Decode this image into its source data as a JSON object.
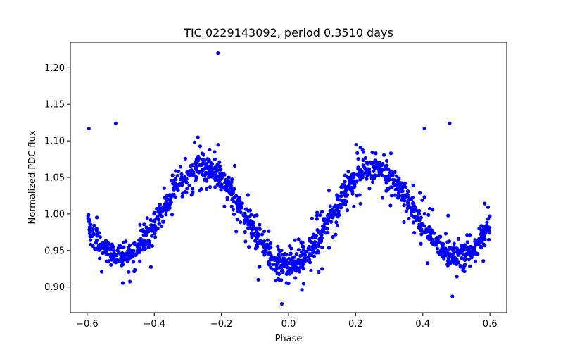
{
  "chart_data": {
    "type": "scatter",
    "title": "TIC 0229143092, period 0.3510 days",
    "xlabel": "Phase",
    "ylabel": "Normalized PDC flux",
    "xlim": [
      -0.65,
      0.65
    ],
    "ylim": [
      0.865,
      1.235
    ],
    "x_ticks": [
      -0.6,
      -0.4,
      -0.2,
      0.0,
      0.2,
      0.4,
      0.6
    ],
    "x_tick_labels": [
      "−0.6",
      "−0.4",
      "−0.2",
      "0.0",
      "0.2",
      "0.4",
      "0.6"
    ],
    "y_ticks": [
      0.9,
      0.95,
      1.0,
      1.05,
      1.1,
      1.15,
      1.2
    ],
    "y_tick_labels": [
      "0.90",
      "0.95",
      "1.00",
      "1.05",
      "1.10",
      "1.15",
      "1.20"
    ],
    "grid": false,
    "legend": "none",
    "marker_color": "#0000ff",
    "model": {
      "description_of_trend": "W UMa-type eclipsing binary light curve: minima near phase 0 (~0.93) and ±0.5 (~0.94), maxima near ±0.27 (~1.06–1.07)",
      "primary_min_flux": 0.928,
      "secondary_min_flux": 0.942,
      "max_flux": 1.062,
      "phase_range": [
        -0.6,
        0.6
      ]
    },
    "series": [
      {
        "values_sample": [
          [
            -0.6,
            1.0
          ],
          [
            -0.56,
            0.97
          ],
          [
            -0.52,
            0.955
          ],
          [
            -0.5,
            0.943
          ],
          [
            -0.46,
            0.952
          ],
          [
            -0.42,
            0.975
          ],
          [
            -0.38,
            1.005
          ],
          [
            -0.34,
            1.035
          ],
          [
            -0.3,
            1.055
          ],
          [
            -0.27,
            1.062
          ],
          [
            -0.24,
            1.057
          ],
          [
            -0.2,
            1.04
          ],
          [
            -0.16,
            1.015
          ],
          [
            -0.12,
            0.99
          ],
          [
            -0.08,
            0.965
          ],
          [
            -0.04,
            0.94
          ],
          [
            0.0,
            0.928
          ],
          [
            0.04,
            0.94
          ],
          [
            0.08,
            0.965
          ],
          [
            0.12,
            0.99
          ],
          [
            0.16,
            1.015
          ],
          [
            0.2,
            1.04
          ],
          [
            0.24,
            1.062
          ],
          [
            0.28,
            1.068
          ],
          [
            0.32,
            1.055
          ],
          [
            0.36,
            1.03
          ],
          [
            0.4,
            1.0
          ],
          [
            0.44,
            0.97
          ],
          [
            0.48,
            0.95
          ],
          [
            0.5,
            0.942
          ],
          [
            0.54,
            0.95
          ],
          [
            0.58,
            0.972
          ],
          [
            0.6,
            0.99
          ]
        ],
        "outliers": [
          [
            -0.595,
            1.117
          ],
          [
            -0.515,
            1.124
          ],
          [
            -0.21,
            1.22
          ],
          [
            -0.27,
            1.105
          ],
          [
            0.405,
            1.117
          ],
          [
            0.48,
            1.124
          ],
          [
            -0.02,
            0.877
          ],
          [
            0.04,
            0.896
          ],
          [
            0.0,
            0.905
          ],
          [
            0.1,
            0.925
          ],
          [
            -0.09,
            0.91
          ],
          [
            0.305,
            1.083
          ],
          [
            -0.28,
            1.098
          ],
          [
            0.26,
            1.083
          ]
        ]
      }
    ]
  }
}
